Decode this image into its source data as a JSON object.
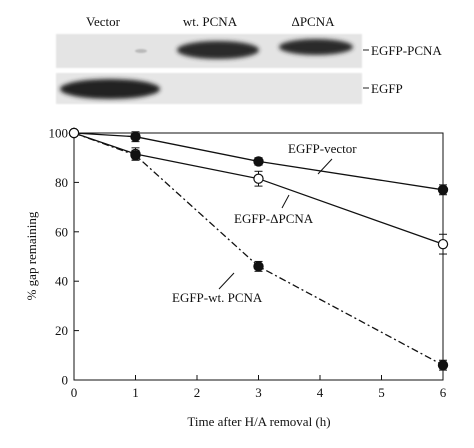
{
  "blot": {
    "lane_labels": [
      "Vector",
      "wt. PCNA",
      "ΔPCNA"
    ],
    "row_labels": [
      "EGFP-PCNA",
      "EGFP"
    ]
  },
  "chart_data": {
    "type": "line",
    "xlabel": "Time after H/A removal (h)",
    "ylabel": "% gap remaining",
    "xlim": [
      0,
      6
    ],
    "ylim": [
      0,
      100
    ],
    "xticks": [
      0,
      1,
      2,
      3,
      4,
      5,
      6
    ],
    "yticks": [
      0,
      20,
      40,
      60,
      80,
      100
    ],
    "grid": false,
    "series": [
      {
        "name": "EGFP-vector",
        "marker": "filled-circle",
        "line": "solid",
        "x": [
          0,
          1,
          3,
          6
        ],
        "y": [
          100,
          98.5,
          88.5,
          77
        ],
        "err": [
          0,
          2,
          1.5,
          2
        ]
      },
      {
        "name": "EGFP-ΔPCNA",
        "marker": "open-circle",
        "line": "solid",
        "x": [
          0,
          1,
          3,
          6
        ],
        "y": [
          100,
          91.5,
          81.5,
          55
        ],
        "err": [
          0,
          2.5,
          3,
          4
        ]
      },
      {
        "name": "EGFP-wt. PCNA",
        "marker": "filled-circle",
        "line": "dash-dot",
        "x": [
          0,
          1,
          3,
          6
        ],
        "y": [
          100,
          91,
          46,
          6
        ],
        "err": [
          0,
          2,
          2,
          2
        ]
      }
    ]
  }
}
